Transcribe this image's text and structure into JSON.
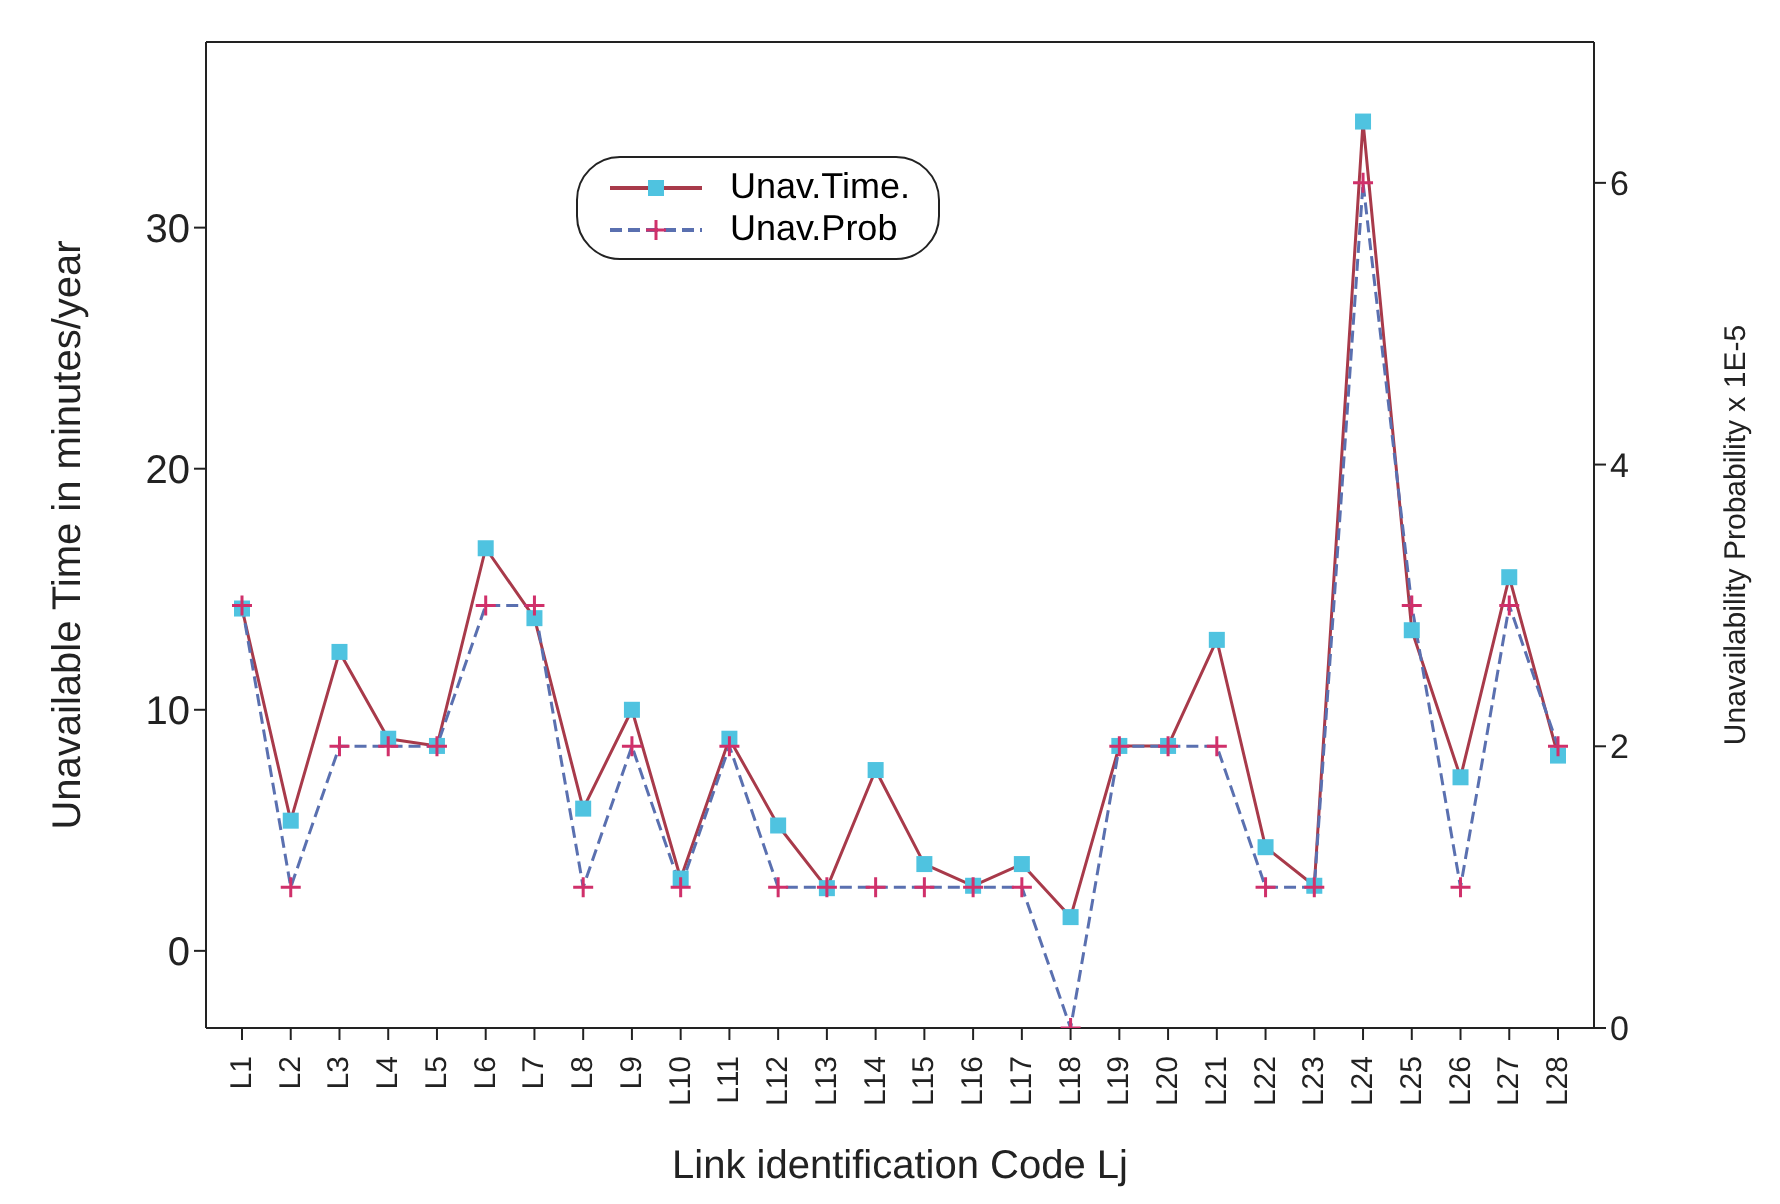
{
  "chart_data": {
    "type": "line",
    "xlabel": "Link identification Code Lj",
    "ylabel": "Unavailable Time in minutes/year",
    "y2label": "Unavailability Probability x 1E-5",
    "categories": [
      "L1",
      "L2",
      "L3",
      "L4",
      "L5",
      "L6",
      "L7",
      "L8",
      "L9",
      "L10",
      "L11",
      "L12",
      "L13",
      "L14",
      "L15",
      "L16",
      "L17",
      "L18",
      "L19",
      "L20",
      "L21",
      "L22",
      "L23",
      "L24",
      "L25",
      "L26",
      "L27",
      "L28"
    ],
    "series": [
      {
        "name": "Unav.Time.",
        "color": "#a83a4a",
        "marker": "square",
        "line_style": "solid",
        "values": [
          14.2,
          5.4,
          12.4,
          8.8,
          8.5,
          16.7,
          13.8,
          5.9,
          10.0,
          3.0,
          8.8,
          5.2,
          2.6,
          7.5,
          3.6,
          2.7,
          3.6,
          1.4,
          8.5,
          8.5,
          12.9,
          4.3,
          2.7,
          34.4,
          13.3,
          7.2,
          15.5,
          8.1
        ]
      },
      {
        "name": "Unav.Prob",
        "color": "#5a70b0",
        "marker": "cross",
        "line_style": "dashed",
        "axis": "y2",
        "values": [
          3,
          1,
          2,
          2,
          2,
          3,
          3,
          1,
          2,
          1,
          2,
          1,
          1,
          1,
          1,
          1,
          1,
          0,
          2,
          2,
          2,
          1,
          1,
          6,
          3,
          1,
          3,
          2
        ]
      }
    ],
    "ylim": [
      -3.2,
      37.7
    ],
    "yticks": [
      0,
      10,
      20,
      30
    ],
    "y2lim": [
      0,
      7
    ],
    "y2ticks": [
      0,
      2,
      4,
      6
    ],
    "legend": "top"
  }
}
